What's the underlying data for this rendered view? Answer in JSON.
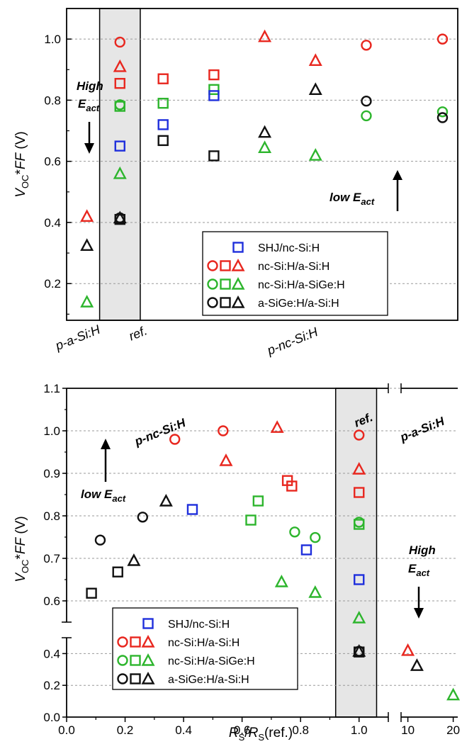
{
  "colors": {
    "red": "#e8271f",
    "green": "#2db52d",
    "blue": "#1f2fdc",
    "black": "#111111",
    "grid": "#999999",
    "ref_band": "#e6e6e6"
  },
  "legend": [
    {
      "markers": [
        "square"
      ],
      "colors": [
        "blue"
      ],
      "label": "SHJ/nc-Si:H"
    },
    {
      "markers": [
        "circle",
        "square",
        "triangle"
      ],
      "colors": [
        "red",
        "red",
        "red"
      ],
      "label": "nc-Si:H/a-Si:H"
    },
    {
      "markers": [
        "circle",
        "square",
        "triangle"
      ],
      "colors": [
        "green",
        "green",
        "green"
      ],
      "label": "nc-Si:H/a-SiGe:H"
    },
    {
      "markers": [
        "circle",
        "square",
        "triangle"
      ],
      "colors": [
        "black",
        "black",
        "black"
      ],
      "label": "a-SiGe:H/a-Si:H"
    }
  ],
  "top_annotations": {
    "high_eact_1": "High",
    "high_eact_2": "E",
    "high_eact_sub": "act",
    "low_eact_1": "low E",
    "low_eact_sub": "act"
  },
  "bottom_annotations": {
    "low_eact_1": "low E",
    "low_eact_sub": "act",
    "high_eact_1": "High",
    "high_eact_2": "E",
    "high_eact_sub": "act",
    "p_nc": "p-nc-Si:H",
    "ref": "ref.",
    "p_a": "p-a-Si:H"
  },
  "chart_data": [
    {
      "type": "scatter",
      "ylabel": {
        "main": "V",
        "sub1": "OC",
        "star": "*",
        "italic": "FF",
        "unit": " (V)"
      },
      "ylim": [
        0.08,
        1.1
      ],
      "yticks": [
        0.2,
        0.4,
        0.6,
        0.8,
        1.0
      ],
      "ytick_labels": [
        "0.2",
        "0.4",
        "0.6",
        "0.8",
        "1.0"
      ],
      "grid": true,
      "legend_position": "bottom-right",
      "x_categories": [
        "p-a-Si:H",
        "ref.",
        "p-nc-Si:H"
      ],
      "ref_band": [
        1.25,
        2.05
      ],
      "xlim": [
        0.6,
        8.3
      ],
      "points": [
        {
          "x": 1,
          "y": 0.42,
          "marker": "triangle",
          "color": "red"
        },
        {
          "x": 1,
          "y": 0.325,
          "marker": "triangle",
          "color": "black"
        },
        {
          "x": 1,
          "y": 0.14,
          "marker": "triangle",
          "color": "green"
        },
        {
          "x": 1.65,
          "y": 0.99,
          "marker": "circle",
          "color": "red"
        },
        {
          "x": 1.65,
          "y": 0.91,
          "marker": "triangle",
          "color": "red"
        },
        {
          "x": 1.65,
          "y": 0.855,
          "marker": "square",
          "color": "red"
        },
        {
          "x": 1.65,
          "y": 0.785,
          "marker": "circle",
          "color": "green"
        },
        {
          "x": 1.65,
          "y": 0.78,
          "marker": "square",
          "color": "green"
        },
        {
          "x": 1.65,
          "y": 0.65,
          "marker": "square",
          "color": "blue"
        },
        {
          "x": 1.65,
          "y": 0.56,
          "marker": "triangle",
          "color": "green"
        },
        {
          "x": 1.65,
          "y": 0.415,
          "marker": "circle",
          "color": "black"
        },
        {
          "x": 1.65,
          "y": 0.41,
          "marker": "square",
          "color": "black"
        },
        {
          "x": 1.65,
          "y": 0.415,
          "marker": "triangle",
          "color": "black"
        },
        {
          "x": 2.5,
          "y": 0.87,
          "marker": "square",
          "color": "red"
        },
        {
          "x": 2.5,
          "y": 0.79,
          "marker": "square",
          "color": "green"
        },
        {
          "x": 2.5,
          "y": 0.72,
          "marker": "square",
          "color": "blue"
        },
        {
          "x": 2.5,
          "y": 0.668,
          "marker": "square",
          "color": "black"
        },
        {
          "x": 3.5,
          "y": 0.883,
          "marker": "square",
          "color": "red"
        },
        {
          "x": 3.5,
          "y": 0.835,
          "marker": "square",
          "color": "green"
        },
        {
          "x": 3.5,
          "y": 0.815,
          "marker": "square",
          "color": "blue"
        },
        {
          "x": 3.5,
          "y": 0.618,
          "marker": "square",
          "color": "black"
        },
        {
          "x": 4.5,
          "y": 1.008,
          "marker": "triangle",
          "color": "red"
        },
        {
          "x": 4.5,
          "y": 0.695,
          "marker": "triangle",
          "color": "black"
        },
        {
          "x": 4.5,
          "y": 0.645,
          "marker": "triangle",
          "color": "green"
        },
        {
          "x": 5.5,
          "y": 0.93,
          "marker": "triangle",
          "color": "red"
        },
        {
          "x": 5.5,
          "y": 0.835,
          "marker": "triangle",
          "color": "black"
        },
        {
          "x": 5.5,
          "y": 0.62,
          "marker": "triangle",
          "color": "green"
        },
        {
          "x": 6.5,
          "y": 0.98,
          "marker": "circle",
          "color": "red"
        },
        {
          "x": 6.5,
          "y": 0.797,
          "marker": "circle",
          "color": "black"
        },
        {
          "x": 6.5,
          "y": 0.749,
          "marker": "circle",
          "color": "green"
        },
        {
          "x": 8.0,
          "y": 1.0,
          "marker": "circle",
          "color": "red"
        },
        {
          "x": 8.0,
          "y": 0.762,
          "marker": "circle",
          "color": "green"
        },
        {
          "x": 8.0,
          "y": 0.743,
          "marker": "circle",
          "color": "black"
        }
      ]
    },
    {
      "type": "scatter",
      "xlabel": {
        "main": "R",
        "sub": "S",
        "slash": "/",
        "main2": "R",
        "sub2": "S",
        "suffix": "(ref.)"
      },
      "ylabel": {
        "main": "V",
        "sub1": "OC",
        "star": "*",
        "italic": "FF",
        "unit": " (V)"
      },
      "upper_ylim": [
        0.55,
        1.1
      ],
      "upper_yticks": [
        0.6,
        0.7,
        0.8,
        0.9,
        1.0,
        1.1
      ],
      "upper_ytick_labels": [
        "0.6",
        "0.7",
        "0.8",
        "0.9",
        "1.0",
        "1.1"
      ],
      "lower_ylim": [
        0.0,
        0.5
      ],
      "lower_yticks": [
        0.0,
        0.2,
        0.4
      ],
      "lower_ytick_labels": [
        "0.0",
        "0.2",
        "0.4"
      ],
      "xlim": [
        0.0,
        1.1
      ],
      "xticks": [
        0.0,
        0.2,
        0.4,
        0.6,
        0.8,
        1.0
      ],
      "xtick_labels": [
        "0.0",
        "0.2",
        "0.4",
        "0.6",
        "0.8",
        "1.0"
      ],
      "x2lim": [
        8.5,
        21
      ],
      "x2ticks": [
        10,
        20
      ],
      "x2tick_labels": [
        "10",
        "20"
      ],
      "ref_band": [
        0.92,
        1.06
      ],
      "grid": true,
      "legend_position": "bottom-left",
      "points": [
        {
          "x": 0.085,
          "y": 0.618,
          "marker": "square",
          "color": "black"
        },
        {
          "x": 0.115,
          "y": 0.743,
          "marker": "circle",
          "color": "black"
        },
        {
          "x": 0.175,
          "y": 0.668,
          "marker": "square",
          "color": "black"
        },
        {
          "x": 0.23,
          "y": 0.695,
          "marker": "triangle",
          "color": "black"
        },
        {
          "x": 0.26,
          "y": 0.797,
          "marker": "circle",
          "color": "black"
        },
        {
          "x": 0.34,
          "y": 0.835,
          "marker": "triangle",
          "color": "black"
        },
        {
          "x": 0.37,
          "y": 0.98,
          "marker": "circle",
          "color": "red"
        },
        {
          "x": 0.43,
          "y": 0.815,
          "marker": "square",
          "color": "blue"
        },
        {
          "x": 0.535,
          "y": 1.0,
          "marker": "circle",
          "color": "red"
        },
        {
          "x": 0.545,
          "y": 0.93,
          "marker": "triangle",
          "color": "red"
        },
        {
          "x": 0.63,
          "y": 0.79,
          "marker": "square",
          "color": "green"
        },
        {
          "x": 0.655,
          "y": 0.835,
          "marker": "square",
          "color": "green"
        },
        {
          "x": 0.72,
          "y": 1.008,
          "marker": "triangle",
          "color": "red"
        },
        {
          "x": 0.735,
          "y": 0.645,
          "marker": "triangle",
          "color": "green"
        },
        {
          "x": 0.755,
          "y": 0.883,
          "marker": "square",
          "color": "red"
        },
        {
          "x": 0.77,
          "y": 0.87,
          "marker": "square",
          "color": "red"
        },
        {
          "x": 0.78,
          "y": 0.762,
          "marker": "circle",
          "color": "green"
        },
        {
          "x": 0.82,
          "y": 0.72,
          "marker": "square",
          "color": "blue"
        },
        {
          "x": 0.85,
          "y": 0.749,
          "marker": "circle",
          "color": "green"
        },
        {
          "x": 0.85,
          "y": 0.62,
          "marker": "triangle",
          "color": "green"
        },
        {
          "x": 1.0,
          "y": 0.99,
          "marker": "circle",
          "color": "red"
        },
        {
          "x": 1.0,
          "y": 0.91,
          "marker": "triangle",
          "color": "red"
        },
        {
          "x": 1.0,
          "y": 0.855,
          "marker": "square",
          "color": "red"
        },
        {
          "x": 1.0,
          "y": 0.785,
          "marker": "circle",
          "color": "green"
        },
        {
          "x": 1.0,
          "y": 0.78,
          "marker": "square",
          "color": "green"
        },
        {
          "x": 1.0,
          "y": 0.65,
          "marker": "square",
          "color": "blue"
        },
        {
          "x": 1.0,
          "y": 0.56,
          "marker": "triangle",
          "color": "green"
        },
        {
          "x": 1.0,
          "y": 0.415,
          "marker": "circle",
          "color": "black"
        },
        {
          "x": 1.0,
          "y": 0.41,
          "marker": "square",
          "color": "black"
        },
        {
          "x": 1.0,
          "y": 0.415,
          "marker": "triangle",
          "color": "black"
        },
        {
          "x2": 10,
          "y": 0.42,
          "marker": "triangle",
          "color": "red"
        },
        {
          "x2": 12,
          "y": 0.325,
          "marker": "triangle",
          "color": "black"
        },
        {
          "x2": 20,
          "y": 0.14,
          "marker": "triangle",
          "color": "green"
        }
      ]
    }
  ]
}
